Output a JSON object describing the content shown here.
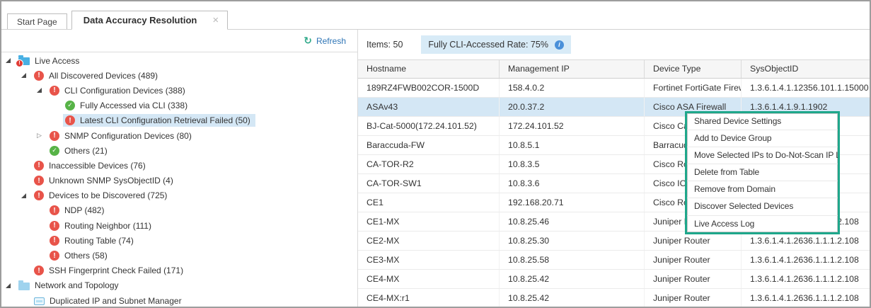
{
  "window": {
    "tabs": [
      {
        "label": "Start Page"
      },
      {
        "label": "Data Accuracy Resolution",
        "close_icon": "×"
      }
    ]
  },
  "left_panel": {
    "refresh_label": "Refresh",
    "tree": [
      {
        "label": "Live Access",
        "level": 0,
        "icon": "folder-badge",
        "arrow": "expanded"
      },
      {
        "label": "All Discovered Devices (489)",
        "level": 1,
        "icon": "error",
        "arrow": "expanded"
      },
      {
        "label": "CLI Configuration Devices (388)",
        "level": 2,
        "icon": "error",
        "arrow": "expanded"
      },
      {
        "label": "Fully Accessed via CLI (338)",
        "level": 3,
        "icon": "ok"
      },
      {
        "label": "Latest CLI Configuration Retrieval Failed (50)",
        "level": 3,
        "icon": "error",
        "selected": true
      },
      {
        "label": "SNMP Configuration Devices (80)",
        "level": 2,
        "icon": "error",
        "arrow": "collapsed"
      },
      {
        "label": "Others (21)",
        "level": 2,
        "icon": "ok"
      },
      {
        "label": "Inaccessible Devices (76)",
        "level": 1,
        "icon": "error"
      },
      {
        "label": "Unknown SNMP SysObjectID (4)",
        "level": 1,
        "icon": "error"
      },
      {
        "label": "Devices to be Discovered (725)",
        "level": 1,
        "icon": "error",
        "arrow": "expanded"
      },
      {
        "label": "NDP (482)",
        "level": 2,
        "icon": "error"
      },
      {
        "label": "Routing Neighbor (111)",
        "level": 2,
        "icon": "error"
      },
      {
        "label": "Routing Table (74)",
        "level": 2,
        "icon": "error"
      },
      {
        "label": "Others (58)",
        "level": 2,
        "icon": "error"
      },
      {
        "label": "SSH Fingerprint Check Failed (171)",
        "level": 1,
        "icon": "error"
      },
      {
        "label": "Network and Topology",
        "level": 0,
        "icon": "folder",
        "arrow": "expanded"
      },
      {
        "label": "Duplicated IP and Subnet Manager",
        "level": 1,
        "icon": "manager"
      }
    ]
  },
  "right_panel": {
    "items_label": "Items: 50",
    "rate_label": "Fully CLI-Accessed Rate: 75%"
  },
  "table": {
    "columns": [
      "Hostname",
      "Management IP",
      "Device Type",
      "SysObjectID"
    ],
    "rows": [
      {
        "hostname": "189RZ4FWB002COR-1500D",
        "management_ip": "158.4.0.2",
        "device_type": "Fortinet FortiGate Firew...",
        "sysobjectid": "1.3.6.1.4.1.12356.101.1.15000"
      },
      {
        "hostname": "ASAv43",
        "management_ip": "20.0.37.2",
        "device_type": "Cisco ASA Firewall",
        "sysobjectid": "1.3.6.1.4.1.9.1.1902",
        "selected": true
      },
      {
        "hostname": "BJ-Cat-5000(172.24.101.52)",
        "management_ip": "172.24.101.52",
        "device_type": "Cisco Ca",
        "sysobjectid": ""
      },
      {
        "hostname": "Baraccuda-FW",
        "management_ip": "10.8.5.1",
        "device_type": "Barracud",
        "sysobjectid": ""
      },
      {
        "hostname": "CA-TOR-R2",
        "management_ip": "10.8.3.5",
        "device_type": "Cisco Ro",
        "sysobjectid": ""
      },
      {
        "hostname": "CA-TOR-SW1",
        "management_ip": "10.8.3.6",
        "device_type": "Cisco IOS",
        "sysobjectid": ""
      },
      {
        "hostname": "CE1",
        "management_ip": "192.168.20.71",
        "device_type": "Cisco Ro",
        "sysobjectid": ""
      },
      {
        "hostname": "CE1-MX",
        "management_ip": "10.8.25.46",
        "device_type": "Juniper Router",
        "sysobjectid": "1.3.6.1.4.1.2636.1.1.1.2.108"
      },
      {
        "hostname": "CE2-MX",
        "management_ip": "10.8.25.30",
        "device_type": "Juniper Router",
        "sysobjectid": "1.3.6.1.4.1.2636.1.1.1.2.108"
      },
      {
        "hostname": "CE3-MX",
        "management_ip": "10.8.25.58",
        "device_type": "Juniper Router",
        "sysobjectid": "1.3.6.1.4.1.2636.1.1.1.2.108"
      },
      {
        "hostname": "CE4-MX",
        "management_ip": "10.8.25.42",
        "device_type": "Juniper Router",
        "sysobjectid": "1.3.6.1.4.1.2636.1.1.1.2.108"
      },
      {
        "hostname": "CE4-MX:r1",
        "management_ip": "10.8.25.42",
        "device_type": "Juniper Router",
        "sysobjectid": "1.3.6.1.4.1.2636.1.1.1.2.108"
      }
    ]
  },
  "context_menu": {
    "items": [
      "Shared Device Settings",
      "Add to Device Group",
      "Move Selected IPs to Do-Not-Scan IP List",
      "Delete from Table",
      "Remove from Domain",
      "Discover Selected Devices",
      "Live Access Log"
    ]
  },
  "colors": {
    "accent_link_blue": "#2e75b6",
    "selection_blue": "#d4e7f5",
    "rate_badge_bg": "#d8ebf7",
    "info_icon_blue": "#4a90d9",
    "error_red": "#e8544a",
    "success_green": "#57b347",
    "folder_blue": "#49b0e3",
    "refresh_green": "#2fa98a",
    "context_menu_border_green": "#1ea78b"
  }
}
